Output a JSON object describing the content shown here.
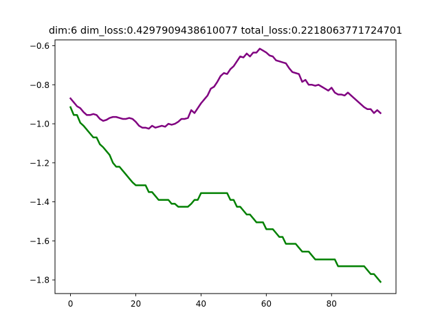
{
  "chart_data": {
    "type": "line",
    "title": "dim:6 dim_loss:0.4297909438610077 total_loss:0.2218063771724701",
    "xlabel": "",
    "ylabel": "",
    "xlim": [
      -4.75,
      99.75
    ],
    "ylim": [
      -1.87,
      -0.57
    ],
    "x_ticks": [
      0,
      20,
      40,
      60,
      80
    ],
    "y_ticks": [
      -1.8,
      -1.6,
      -1.4,
      -1.2,
      -1.0,
      -0.8,
      -0.6
    ],
    "x_tick_labels": [
      "0",
      "20",
      "40",
      "60",
      "80"
    ],
    "y_tick_labels": [
      "−1.8",
      "−1.6",
      "−1.4",
      "−1.2",
      "−1.0",
      "−0.8",
      "−0.6"
    ],
    "grid": false,
    "series": [
      {
        "color": "#800080",
        "x": [
          0,
          1,
          2,
          3,
          4,
          5,
          6,
          7,
          8,
          9,
          10,
          11,
          12,
          13,
          14,
          15,
          16,
          17,
          18,
          19,
          20,
          21,
          22,
          23,
          24,
          25,
          26,
          27,
          28,
          29,
          30,
          31,
          32,
          33,
          34,
          35,
          36,
          37,
          38,
          39,
          40,
          41,
          42,
          43,
          44,
          45,
          46,
          47,
          48,
          49,
          50,
          51,
          52,
          53,
          54,
          55,
          56,
          57,
          58,
          59,
          60,
          61,
          62,
          63,
          64,
          65,
          66,
          67,
          68,
          69,
          70,
          71,
          72,
          73,
          74,
          75,
          76,
          77,
          78,
          79,
          80,
          81,
          82,
          83,
          84,
          85,
          86,
          87,
          88,
          89,
          90,
          91,
          92,
          93,
          94,
          95
        ],
        "values": [
          -0.87,
          -0.89,
          -0.91,
          -0.92,
          -0.94,
          -0.955,
          -0.955,
          -0.95,
          -0.955,
          -0.975,
          -0.985,
          -0.98,
          -0.97,
          -0.965,
          -0.965,
          -0.97,
          -0.975,
          -0.975,
          -0.97,
          -0.975,
          -0.99,
          -1.01,
          -1.02,
          -1.02,
          -1.025,
          -1.01,
          -1.02,
          -1.015,
          -1.01,
          -1.015,
          -1.0,
          -1.005,
          -1.0,
          -0.99,
          -0.975,
          -0.975,
          -0.97,
          -0.93,
          -0.945,
          -0.92,
          -0.895,
          -0.875,
          -0.855,
          -0.82,
          -0.81,
          -0.785,
          -0.755,
          -0.74,
          -0.745,
          -0.72,
          -0.705,
          -0.68,
          -0.655,
          -0.66,
          -0.64,
          -0.655,
          -0.635,
          -0.635,
          -0.615,
          -0.625,
          -0.635,
          -0.65,
          -0.655,
          -0.675,
          -0.68,
          -0.685,
          -0.69,
          -0.715,
          -0.735,
          -0.74,
          -0.745,
          -0.785,
          -0.775,
          -0.8,
          -0.8,
          -0.805,
          -0.8,
          -0.81,
          -0.82,
          -0.83,
          -0.815,
          -0.84,
          -0.85,
          -0.85,
          -0.855,
          -0.84,
          -0.855,
          -0.87,
          -0.885,
          -0.9,
          -0.915,
          -0.925,
          -0.925,
          -0.945,
          -0.93,
          -0.945
        ]
      },
      {
        "color": "#008000",
        "x": [
          0,
          1,
          2,
          3,
          4,
          5,
          6,
          7,
          8,
          9,
          10,
          11,
          12,
          13,
          14,
          15,
          16,
          17,
          18,
          19,
          20,
          21,
          22,
          23,
          24,
          25,
          26,
          27,
          28,
          29,
          30,
          31,
          32,
          33,
          34,
          35,
          36,
          37,
          38,
          39,
          40,
          41,
          42,
          43,
          44,
          45,
          46,
          47,
          48,
          49,
          50,
          51,
          52,
          53,
          54,
          55,
          56,
          57,
          58,
          59,
          60,
          61,
          62,
          63,
          64,
          65,
          66,
          67,
          68,
          69,
          70,
          71,
          72,
          73,
          74,
          75,
          76,
          77,
          78,
          79,
          80,
          81,
          82,
          83,
          84,
          85,
          86,
          87,
          88,
          89,
          90,
          91,
          92,
          93,
          94,
          95
        ],
        "values": [
          -0.915,
          -0.955,
          -0.955,
          -0.995,
          -1.01,
          -1.03,
          -1.05,
          -1.07,
          -1.07,
          -1.105,
          -1.12,
          -1.14,
          -1.16,
          -1.2,
          -1.22,
          -1.22,
          -1.24,
          -1.26,
          -1.28,
          -1.3,
          -1.315,
          -1.315,
          -1.315,
          -1.315,
          -1.35,
          -1.35,
          -1.37,
          -1.39,
          -1.39,
          -1.39,
          -1.39,
          -1.41,
          -1.41,
          -1.425,
          -1.425,
          -1.425,
          -1.425,
          -1.41,
          -1.39,
          -1.39,
          -1.355,
          -1.355,
          -1.355,
          -1.355,
          -1.355,
          -1.355,
          -1.355,
          -1.355,
          -1.355,
          -1.39,
          -1.39,
          -1.425,
          -1.425,
          -1.445,
          -1.465,
          -1.465,
          -1.485,
          -1.505,
          -1.505,
          -1.505,
          -1.54,
          -1.54,
          -1.54,
          -1.56,
          -1.58,
          -1.58,
          -1.615,
          -1.615,
          -1.615,
          -1.615,
          -1.635,
          -1.655,
          -1.655,
          -1.655,
          -1.675,
          -1.695,
          -1.695,
          -1.695,
          -1.695,
          -1.695,
          -1.695,
          -1.695,
          -1.73,
          -1.73,
          -1.73,
          -1.73,
          -1.73,
          -1.73,
          -1.73,
          -1.73,
          -1.73,
          -1.75,
          -1.77,
          -1.77,
          -1.79,
          -1.81
        ]
      }
    ]
  }
}
